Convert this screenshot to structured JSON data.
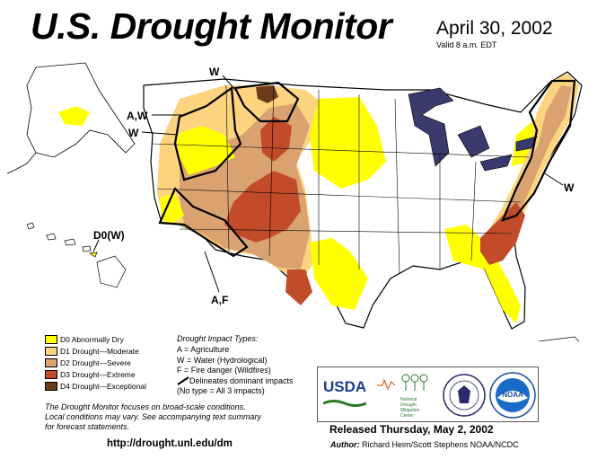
{
  "header": {
    "title": "U.S. Drought Monitor",
    "date": "April 30, 2002",
    "valid": "Valid 8 a.m. EDT"
  },
  "map": {
    "impact_labels": [
      "W",
      "A,W",
      "W",
      "W",
      "D0(W)",
      "A,F"
    ]
  },
  "legend": {
    "items": [
      {
        "label": "D0 Abnormally Dry",
        "color": "#ffff00"
      },
      {
        "label": "D1 Drought—Moderate",
        "color": "#fcd37f"
      },
      {
        "label": "D2 Drought—Severe",
        "color": "#d9a270"
      },
      {
        "label": "D3 Drought—Extreme",
        "color": "#c24c29"
      },
      {
        "label": "D4 Drought—Exceptional",
        "color": "#6e3a1c"
      }
    ]
  },
  "impacts": {
    "heading": "Drought Impact Types:",
    "items": [
      "A = Agriculture",
      "W = Water (Hydrological)",
      "F = Fire danger (Wildfires)",
      "Delineates dominant impacts",
      "(No type = All 3 impacts)"
    ]
  },
  "focus_text": [
    "The Drought Monitor focuses on broad-scale conditions.",
    "Local conditions may vary. See accompanying text summary",
    "for forecast statements."
  ],
  "url": "http://drought.unl.edu/dm",
  "released": "Released Thursday, May 2, 2002",
  "author": {
    "label": "Author:",
    "value": "Richard Heim/Scott Stephens NOAA/NCDC"
  },
  "logos": {
    "usda": "USDA",
    "ndmc": [
      "National",
      "Drought",
      "Mitigation",
      "Center"
    ],
    "noaa": "NOAA"
  },
  "colors": {
    "D0": "#ffff00",
    "D1": "#fcd37f",
    "D2": "#d9a270",
    "D3": "#c24c29",
    "D4": "#6e3a1c",
    "water": "#3a3a6e"
  }
}
